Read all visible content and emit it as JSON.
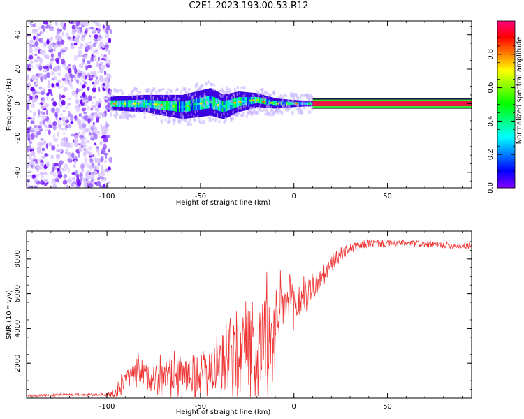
{
  "title": "C2E1.2023.193.00.53.R12",
  "chart_data": [
    {
      "type": "heatmap",
      "name": "spectrogram",
      "xlabel": "Height of straight line (km)",
      "ylabel": "Frequency (Hz)",
      "xlim": [
        -143,
        95
      ],
      "ylim": [
        -49,
        48
      ],
      "xticks": [
        -100,
        -50,
        0,
        50
      ],
      "yticks": [
        -40,
        -20,
        0,
        20,
        40
      ],
      "regions": [
        {
          "desc": "scattered noise",
          "x_range": [
            -143,
            -98
          ],
          "y_range": [
            -49,
            48
          ],
          "amplitude_range": [
            0.05,
            0.3
          ]
        },
        {
          "desc": "broadened echo band",
          "x_range": [
            -98,
            10
          ],
          "center_freq": [
            [
              -98,
              0
            ],
            [
              -80,
              0
            ],
            [
              -60,
              -2
            ],
            [
              -45,
              1
            ],
            [
              -38,
              -2
            ],
            [
              -30,
              1
            ],
            [
              -20,
              2
            ],
            [
              -10,
              0
            ],
            [
              0,
              0
            ],
            [
              10,
              0
            ]
          ],
          "half_width": [
            [
              -98,
              4
            ],
            [
              -80,
              5
            ],
            [
              -60,
              7
            ],
            [
              -45,
              8
            ],
            [
              -30,
              6
            ],
            [
              -20,
              4
            ],
            [
              -10,
              3
            ],
            [
              0,
              2
            ],
            [
              10,
              1.5
            ]
          ],
          "amplitude_range": [
            0.2,
            0.85
          ]
        },
        {
          "desc": "narrow line",
          "x_range": [
            10,
            95
          ],
          "center_freq": 0,
          "half_width": 1.5,
          "amplitude": 0.9
        }
      ],
      "colorbar": {
        "label": "Normalized spectral amplitude",
        "range": [
          0,
          1
        ],
        "ticks": [
          0.0,
          0.2,
          0.4,
          0.6,
          0.8
        ],
        "tick_labels": [
          "0.0",
          "0.2",
          "0.4",
          "0.6",
          "0.8"
        ]
      }
    },
    {
      "type": "line",
      "name": "snr",
      "xlabel": "Height of straight line (km)",
      "ylabel": "SNR (10 * v/v)",
      "xlim": [
        -143,
        95
      ],
      "ylim": [
        0,
        9600
      ],
      "xticks": [
        -100,
        -50,
        0,
        50
      ],
      "yticks": [
        2000,
        4000,
        6000,
        8000
      ],
      "color": "#ee3333",
      "envelope": [
        [
          -143,
          150
        ],
        [
          -120,
          200
        ],
        [
          -100,
          200
        ],
        [
          -95,
          250
        ],
        [
          -92,
          1000
        ],
        [
          -85,
          1300
        ],
        [
          -75,
          1200
        ],
        [
          -65,
          1500
        ],
        [
          -55,
          1400
        ],
        [
          -45,
          1700
        ],
        [
          -35,
          2200
        ],
        [
          -28,
          2800
        ],
        [
          -22,
          3600
        ],
        [
          -18,
          3800
        ],
        [
          -14,
          3300
        ],
        [
          -10,
          4000
        ],
        [
          -5,
          5500
        ],
        [
          0,
          5300
        ],
        [
          5,
          5800
        ],
        [
          10,
          6300
        ],
        [
          15,
          6900
        ],
        [
          20,
          7700
        ],
        [
          25,
          8300
        ],
        [
          30,
          8600
        ],
        [
          40,
          8900
        ],
        [
          50,
          8900
        ],
        [
          60,
          8900
        ],
        [
          70,
          8850
        ],
        [
          80,
          8800
        ],
        [
          95,
          8750
        ]
      ],
      "noise_amplitude": [
        [
          -143,
          60
        ],
        [
          -100,
          80
        ],
        [
          -92,
          500
        ],
        [
          -80,
          800
        ],
        [
          -60,
          1000
        ],
        [
          -40,
          1400
        ],
        [
          -30,
          2500
        ],
        [
          -20,
          3000
        ],
        [
          -15,
          2600
        ],
        [
          -10,
          1500
        ],
        [
          0,
          1200
        ],
        [
          10,
          700
        ],
        [
          20,
          500
        ],
        [
          30,
          300
        ],
        [
          50,
          200
        ],
        [
          95,
          180
        ]
      ]
    }
  ]
}
